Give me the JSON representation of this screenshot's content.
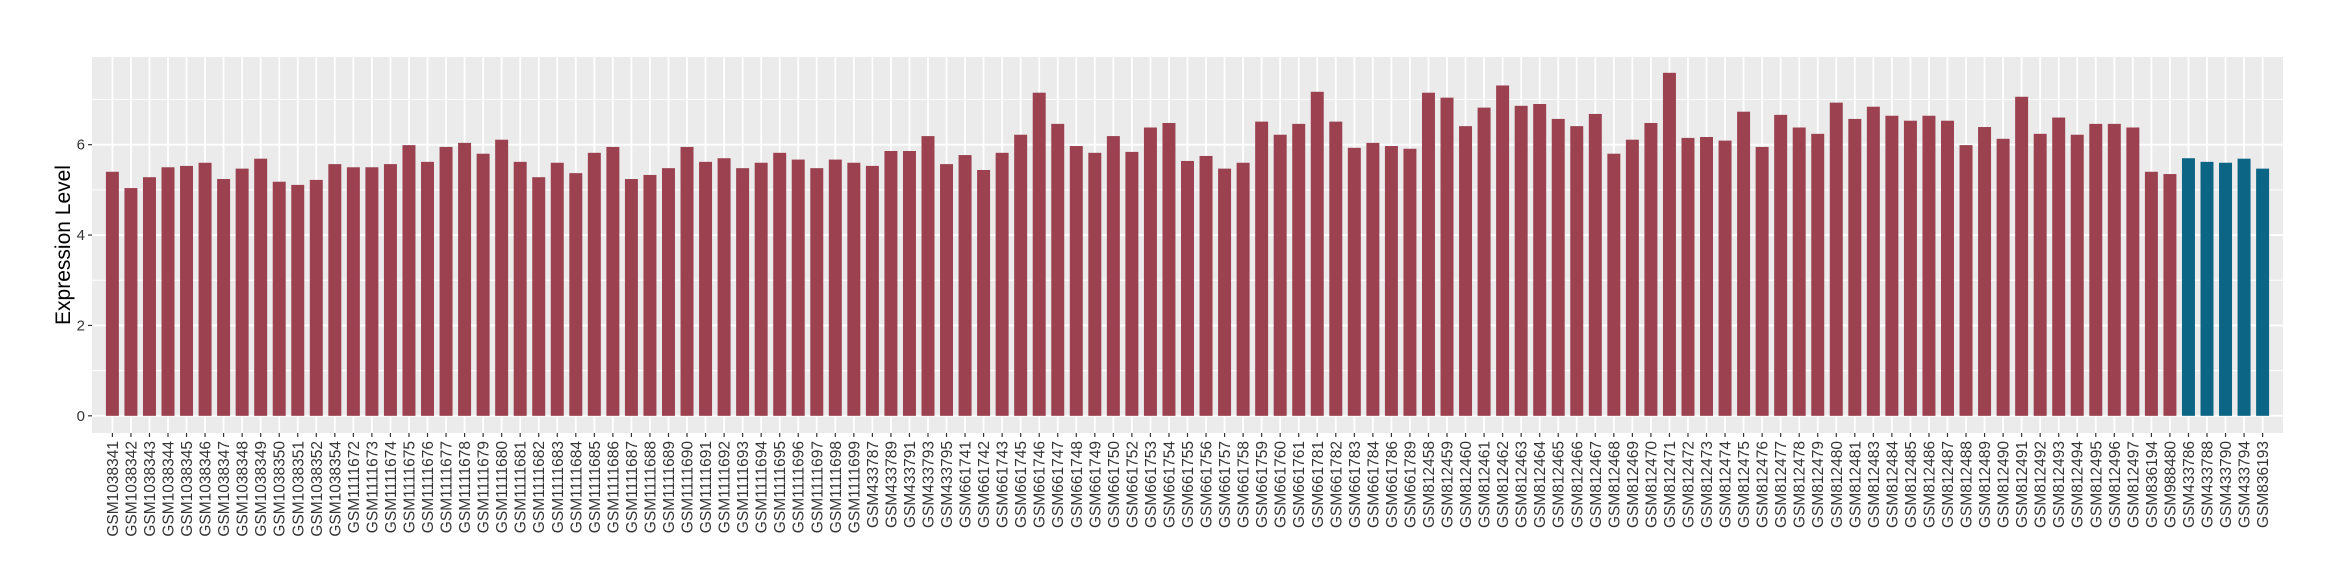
{
  "chart_data": {
    "type": "bar",
    "title": "",
    "xlabel": "",
    "ylabel": "Expression Level",
    "ylim": [
      -0.38,
      7.94
    ],
    "yticks": [
      0,
      2,
      4,
      6
    ],
    "grid": true,
    "legend": "none",
    "colors": {
      "group_a": "#9B4150",
      "group_b": "#0C6585",
      "panel": "#EBEBEB",
      "grid": "#FFFFFF"
    },
    "categories": [
      "GSM1038341",
      "GSM1038342",
      "GSM1038343",
      "GSM1038344",
      "GSM1038345",
      "GSM1038346",
      "GSM1038347",
      "GSM1038348",
      "GSM1038349",
      "GSM1038350",
      "GSM1038351",
      "GSM1038352",
      "GSM1038354",
      "GSM1111672",
      "GSM1111673",
      "GSM1111674",
      "GSM1111675",
      "GSM1111676",
      "GSM1111677",
      "GSM1111678",
      "GSM1111679",
      "GSM1111680",
      "GSM1111681",
      "GSM1111682",
      "GSM1111683",
      "GSM1111684",
      "GSM1111685",
      "GSM1111686",
      "GSM1111687",
      "GSM1111688",
      "GSM1111689",
      "GSM1111690",
      "GSM1111691",
      "GSM1111692",
      "GSM1111693",
      "GSM1111694",
      "GSM1111695",
      "GSM1111696",
      "GSM1111697",
      "GSM1111698",
      "GSM1111699",
      "GSM433787",
      "GSM433789",
      "GSM433791",
      "GSM433793",
      "GSM433795",
      "GSM661741",
      "GSM661742",
      "GSM661743",
      "GSM661745",
      "GSM661746",
      "GSM661747",
      "GSM661748",
      "GSM661749",
      "GSM661750",
      "GSM661752",
      "GSM661753",
      "GSM661754",
      "GSM661755",
      "GSM661756",
      "GSM661757",
      "GSM661758",
      "GSM661759",
      "GSM661760",
      "GSM661761",
      "GSM661781",
      "GSM661782",
      "GSM661783",
      "GSM661784",
      "GSM661786",
      "GSM661789",
      "GSM812458",
      "GSM812459",
      "GSM812460",
      "GSM812461",
      "GSM812462",
      "GSM812463",
      "GSM812464",
      "GSM812465",
      "GSM812466",
      "GSM812467",
      "GSM812468",
      "GSM812469",
      "GSM812470",
      "GSM812471",
      "GSM812472",
      "GSM812473",
      "GSM812474",
      "GSM812475",
      "GSM812476",
      "GSM812477",
      "GSM812478",
      "GSM812479",
      "GSM812480",
      "GSM812481",
      "GSM812483",
      "GSM812484",
      "GSM812485",
      "GSM812486",
      "GSM812487",
      "GSM812488",
      "GSM812489",
      "GSM812490",
      "GSM812491",
      "GSM812492",
      "GSM812493",
      "GSM812494",
      "GSM812495",
      "GSM812496",
      "GSM812497",
      "GSM836194",
      "GSM988480",
      "GSM433786",
      "GSM433788",
      "GSM433790",
      "GSM433794",
      "GSM836193"
    ],
    "values": [
      5.4,
      5.04,
      5.28,
      5.5,
      5.53,
      5.6,
      5.24,
      5.47,
      5.69,
      5.18,
      5.11,
      5.22,
      5.57,
      5.5,
      5.5,
      5.57,
      5.99,
      5.62,
      5.95,
      6.04,
      5.8,
      6.11,
      5.62,
      5.28,
      5.6,
      5.37,
      5.82,
      5.95,
      5.24,
      5.33,
      5.48,
      5.95,
      5.62,
      5.7,
      5.48,
      5.6,
      5.82,
      5.67,
      5.48,
      5.67,
      5.6,
      5.53,
      5.86,
      5.86,
      6.19,
      5.57,
      5.77,
      5.44,
      5.82,
      6.22,
      7.15,
      6.46,
      5.97,
      5.82,
      6.19,
      5.84,
      6.38,
      6.48,
      5.64,
      5.75,
      5.47,
      5.6,
      6.51,
      6.22,
      6.46,
      7.17,
      6.51,
      5.93,
      6.04,
      5.97,
      5.91,
      7.15,
      7.04,
      6.41,
      6.82,
      7.31,
      6.86,
      6.9,
      6.57,
      6.41,
      6.68,
      5.8,
      6.11,
      6.48,
      7.59,
      6.15,
      6.17,
      6.09,
      6.73,
      5.95,
      6.66,
      6.38,
      6.24,
      6.93,
      6.57,
      6.84,
      6.64,
      6.53,
      6.64,
      6.53,
      5.99,
      6.39,
      6.13,
      7.06,
      6.24,
      6.6,
      6.22,
      6.46,
      6.46,
      6.38,
      5.4,
      5.35,
      5.7,
      5.62,
      5.6,
      5.69,
      5.47
    ],
    "groups": [
      "a",
      "a",
      "a",
      "a",
      "a",
      "a",
      "a",
      "a",
      "a",
      "a",
      "a",
      "a",
      "a",
      "a",
      "a",
      "a",
      "a",
      "a",
      "a",
      "a",
      "a",
      "a",
      "a",
      "a",
      "a",
      "a",
      "a",
      "a",
      "a",
      "a",
      "a",
      "a",
      "a",
      "a",
      "a",
      "a",
      "a",
      "a",
      "a",
      "a",
      "a",
      "a",
      "a",
      "a",
      "a",
      "a",
      "a",
      "a",
      "a",
      "a",
      "a",
      "a",
      "a",
      "a",
      "a",
      "a",
      "a",
      "a",
      "a",
      "a",
      "a",
      "a",
      "a",
      "a",
      "a",
      "a",
      "a",
      "a",
      "a",
      "a",
      "a",
      "a",
      "a",
      "a",
      "a",
      "a",
      "a",
      "a",
      "a",
      "a",
      "a",
      "a",
      "a",
      "a",
      "a",
      "a",
      "a",
      "a",
      "a",
      "a",
      "a",
      "a",
      "a",
      "a",
      "a",
      "a",
      "a",
      "a",
      "a",
      "a",
      "a",
      "a",
      "a",
      "a",
      "a",
      "a",
      "a",
      "a",
      "a",
      "a",
      "a",
      "a",
      "b",
      "b",
      "b",
      "b",
      "b"
    ]
  }
}
